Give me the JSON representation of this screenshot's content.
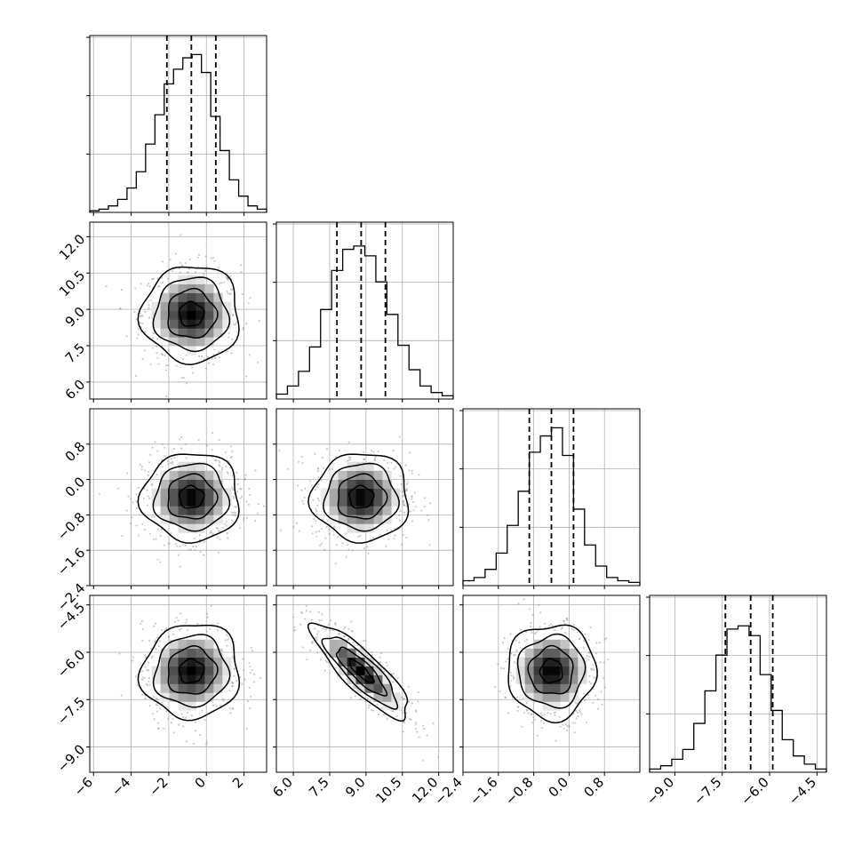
{
  "chart_data": {
    "type": "corner",
    "parameters": 4,
    "title": "",
    "axis_labels": [
      "",
      "",
      "",
      ""
    ],
    "ranges": [
      [
        -6.2,
        3.2
      ],
      [
        5.3,
        12.6
      ],
      [
        -2.4,
        1.6
      ],
      [
        -9.8,
        -4.2
      ]
    ],
    "quantiles": [
      [
        -2.1,
        -0.8,
        0.5
      ],
      [
        7.8,
        8.8,
        9.8
      ],
      [
        -0.9,
        -0.4,
        0.1
      ],
      [
        -7.4,
        -6.6,
        -5.9
      ]
    ],
    "tick_values": [
      [
        -6,
        -4,
        -2,
        0,
        2
      ],
      [
        6.0,
        7.5,
        9.0,
        10.5,
        12.0
      ],
      [
        -2.4,
        -1.6,
        -0.8,
        0.0,
        0.8
      ],
      [
        -9.0,
        -7.5,
        -6.0,
        -4.5
      ]
    ],
    "tick_labels": [
      [
        "−6",
        "−4",
        "−2",
        "0",
        "2"
      ],
      [
        "6.0",
        "7.5",
        "9.0",
        "10.5",
        "12.0"
      ],
      [
        "−2.4",
        "−1.6",
        "−0.8",
        "0.0",
        "0.8"
      ],
      [
        "−9.0",
        "−7.5",
        "−6.0",
        "−4.5"
      ]
    ],
    "left_tick_labels": {
      "1": [
        "6.0",
        "7.5",
        "9.0",
        "10.5",
        "12.0"
      ],
      "2": [
        "−2.4",
        "−1.6",
        "−0.8",
        "0.0",
        "0.8"
      ],
      "3": [
        "−9.0",
        "−7.5",
        "−6.0",
        "−4.5"
      ]
    },
    "histograms": [
      {
        "param": 0,
        "counts": [
          1,
          2,
          4,
          8,
          15,
          25,
          42,
          60,
          79,
          88,
          95,
          97,
          86,
          59,
          38,
          20,
          10,
          4,
          2
        ],
        "ymax": 100
      },
      {
        "param": 1,
        "counts": [
          3,
          8,
          17,
          32,
          55,
          79,
          92,
          94,
          88,
          72,
          52,
          33,
          18,
          8,
          4,
          2
        ],
        "ymax": 100
      },
      {
        "param": 2,
        "counts": [
          3,
          5,
          10,
          20,
          37,
          58,
          82,
          92,
          97,
          80,
          47,
          25,
          12,
          5,
          3,
          2
        ],
        "ymax": 100
      },
      {
        "param": 3,
        "counts": [
          2,
          4,
          8,
          14,
          30,
          50,
          72,
          88,
          90,
          84,
          60,
          38,
          20,
          10,
          5,
          2
        ],
        "ymax": 100
      }
    ],
    "pairs": [
      {
        "x": 0,
        "y": 1,
        "center": [
          -0.8,
          8.8
        ],
        "sd": [
          1.3,
          1.0
        ],
        "corr": 0.0
      },
      {
        "x": 0,
        "y": 2,
        "center": [
          -0.8,
          -0.4
        ],
        "sd": [
          1.3,
          0.5
        ],
        "corr": 0.0
      },
      {
        "x": 1,
        "y": 2,
        "center": [
          8.8,
          -0.4
        ],
        "sd": [
          1.0,
          0.5
        ],
        "corr": 0.0
      },
      {
        "x": 0,
        "y": 3,
        "center": [
          -0.8,
          -6.6
        ],
        "sd": [
          1.3,
          0.75
        ],
        "corr": 0.05
      },
      {
        "x": 1,
        "y": 3,
        "center": [
          8.8,
          -6.6
        ],
        "sd": [
          1.0,
          0.75
        ],
        "corr": -0.85
      },
      {
        "x": 2,
        "y": 3,
        "center": [
          -0.4,
          -6.6
        ],
        "sd": [
          0.5,
          0.75
        ],
        "corr": 0.0
      }
    ],
    "contour_levels_sd": [
      0.5,
      1.0,
      1.5,
      2.0
    ],
    "grid": true,
    "colors": {
      "line": "#000000",
      "grid": "#b0b0b0",
      "density": "#000000",
      "points": "#8c8c8c"
    }
  }
}
